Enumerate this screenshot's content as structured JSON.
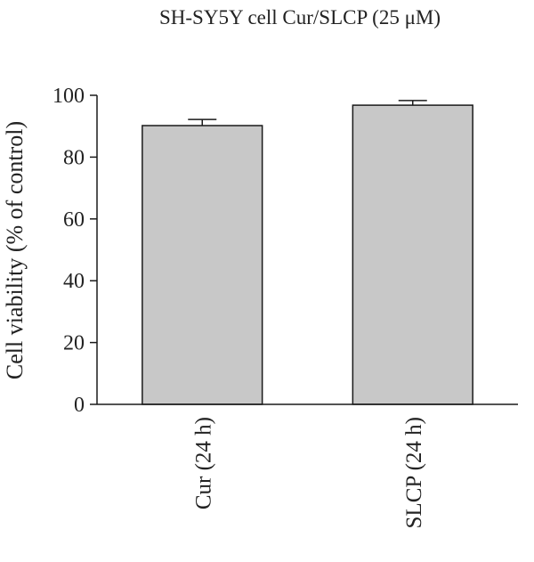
{
  "chart_data": {
    "type": "bar",
    "title": "SH-SY5Y cell Cur/SLCP (25 μM)",
    "xlabel": "",
    "ylabel": "Cell viability (% of control)",
    "categories": [
      "Cur (24 h)",
      "SLCP (24 h)"
    ],
    "values": [
      90.2,
      96.8
    ],
    "errors": [
      2.0,
      1.5
    ],
    "ylim": [
      0,
      100
    ],
    "yticks": [
      0,
      20,
      40,
      60,
      80,
      100
    ],
    "bar_color": "#c8c8c8",
    "grid": false,
    "legend": "none"
  }
}
